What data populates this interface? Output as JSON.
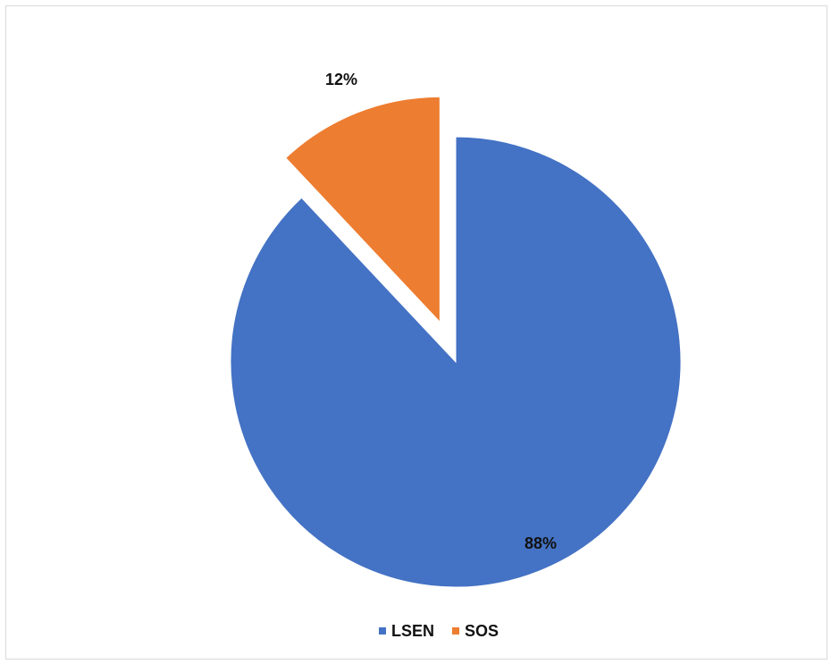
{
  "chart_data": {
    "type": "pie",
    "categories": [
      "LSEN",
      "SOS"
    ],
    "values": [
      88,
      12
    ],
    "labels": [
      "88%",
      "12%"
    ],
    "colors": [
      "#4472C4",
      "#ED7D31"
    ],
    "exploded": [
      false,
      true
    ],
    "start_angle_deg": 0,
    "direction": "clockwise",
    "legend": {
      "position": "bottom",
      "entries": [
        "LSEN",
        "SOS"
      ]
    }
  }
}
